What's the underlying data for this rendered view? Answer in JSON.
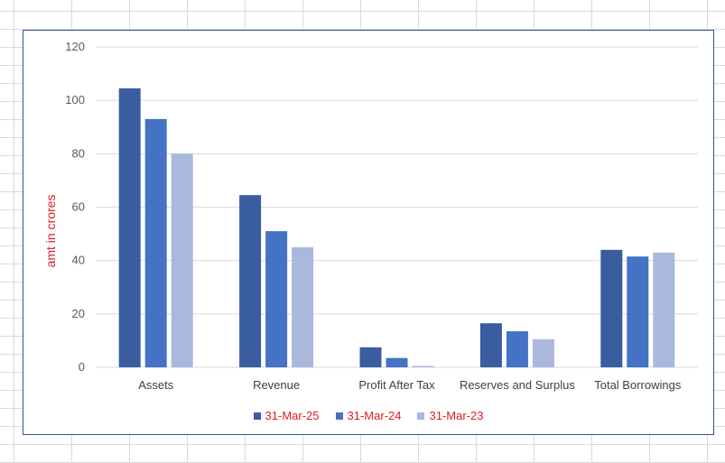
{
  "chart_data": {
    "type": "bar",
    "title": "",
    "xlabel": "",
    "ylabel": "amt in crores",
    "ylim": [
      0,
      120
    ],
    "yticks": [
      0,
      20,
      40,
      60,
      80,
      100,
      120
    ],
    "grid": true,
    "legend_position": "bottom",
    "categories": [
      "Assets",
      "Revenue",
      "Profit After Tax",
      "Reserves and Surplus",
      "Total Borrowings"
    ],
    "series": [
      {
        "name": "31-Mar-25",
        "color": "#3a5da0",
        "values": [
          104.5,
          64.5,
          7.5,
          16.5,
          44
        ]
      },
      {
        "name": "31-Mar-24",
        "color": "#4472c4",
        "values": [
          93,
          51,
          3.5,
          13.5,
          41.5
        ]
      },
      {
        "name": "31-Mar-23",
        "color": "#a9b8dc",
        "values": [
          80,
          45,
          0.5,
          10.5,
          43
        ]
      }
    ]
  }
}
